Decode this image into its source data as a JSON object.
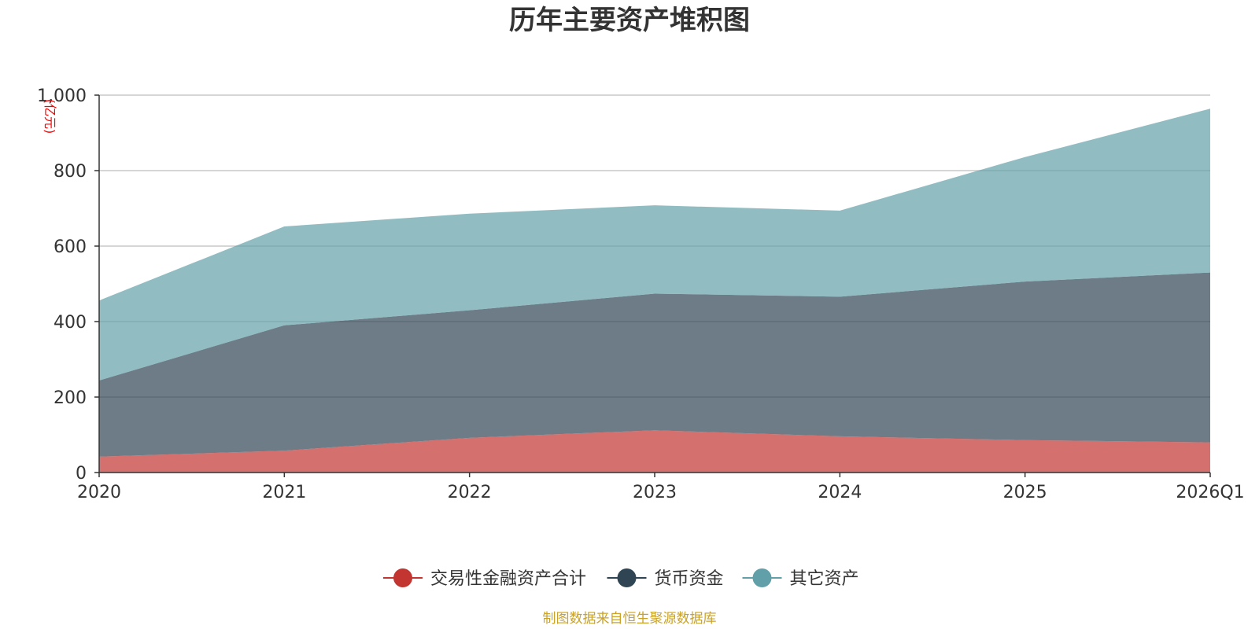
{
  "chart_data": {
    "type": "area",
    "stacked": true,
    "title": "历年主要资产堆积图",
    "unit": "(亿元)",
    "x": [
      "2020",
      "2021",
      "2022",
      "2023",
      "2024",
      "2025",
      "2026Q1"
    ],
    "ylim": [
      0,
      1000
    ],
    "yticks": [
      0,
      200,
      400,
      600,
      800,
      1000
    ],
    "ytick_labels": [
      "0",
      "200",
      "400",
      "600",
      "800",
      "1,000"
    ],
    "grid": true,
    "legend_position": "bottom-center",
    "series": [
      {
        "name": "交易性金融资产合计",
        "color": "#c23531",
        "values": [
          42,
          58,
          92,
          112,
          96,
          86,
          80
        ]
      },
      {
        "name": "货币资金",
        "color": "#2f4554",
        "values": [
          202,
          332,
          338,
          362,
          370,
          420,
          450
        ]
      },
      {
        "name": "其它资产",
        "color": "#61a0a8",
        "values": [
          212,
          262,
          256,
          234,
          228,
          330,
          434
        ]
      }
    ],
    "source_note": "制图数据来自恒生聚源数据库"
  }
}
